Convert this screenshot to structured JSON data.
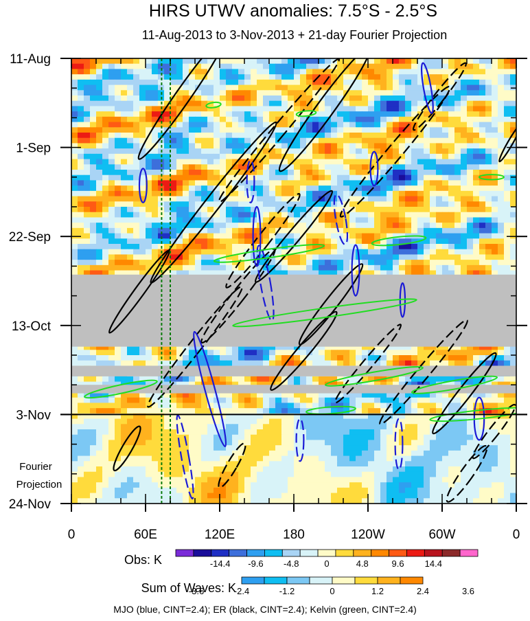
{
  "chart_data": {
    "type": "heatmap",
    "title": "HIRS UTWV anomalies: 7.5°S - 2.5°S",
    "subtitle": "11-Aug-2013 to 3-Nov-2013 + 21-day Fourier Projection",
    "x_tick_labels": [
      "0",
      "60E",
      "120E",
      "180",
      "120W",
      "60W",
      "0"
    ],
    "x_tick_lons": [
      0,
      60,
      120,
      180,
      240,
      300,
      360
    ],
    "xlim": [
      0,
      360
    ],
    "y_tick_labels": [
      "11-Aug",
      "1-Sep",
      "22-Sep",
      "13-Oct",
      "3-Nov",
      "24-Nov"
    ],
    "y_tick_days": [
      0,
      21,
      42,
      63,
      84,
      105
    ],
    "ylim_days": [
      0,
      105
    ],
    "projection_start_day": 84,
    "projection_label_line1": "Fourier",
    "projection_label_line2": "Projection",
    "reference_lons_dotted": [
      73,
      80
    ],
    "missing_data_bands_days": [
      [
        51,
        68
      ],
      [
        72.5,
        75
      ],
      [
        77,
        79
      ]
    ],
    "obs_colorbar": {
      "label": "Obs: K",
      "tick_labels": [
        "-14.4",
        "-9.6",
        "-4.8",
        "0",
        "4.8",
        "9.6",
        "14.4"
      ],
      "colors": [
        "#7a2bd8",
        "#1a0e9a",
        "#1f2fc4",
        "#3d6fdb",
        "#2e9ff0",
        "#0fbef2",
        "#a9d4f5",
        "#d8f3f8",
        "#fffbc7",
        "#ffdb3c",
        "#ffb21e",
        "#ff8800",
        "#ff5a14",
        "#ec1b14",
        "#b8141e",
        "#8c2a2a",
        "#ff66cc"
      ]
    },
    "waves_colorbar": {
      "label": "Sum of Waves: K",
      "tick_labels": [
        "-3.6",
        "-2.4",
        "-1.2",
        "0",
        "1.2",
        "2.4",
        "3.6"
      ],
      "colors": [
        "#2e9ff0",
        "#0fbef2",
        "#7cc8f4",
        "#d8f3f8",
        "#fffbc7",
        "#ffdb3c",
        "#ffb21e",
        "#ff8800"
      ]
    },
    "contour_series": [
      {
        "name": "MJO",
        "color": "blue",
        "hex": "#1b1bd6",
        "cint": 2.4
      },
      {
        "name": "ER",
        "color": "black",
        "hex": "#000000",
        "cint": 2.4
      },
      {
        "name": "Kelvin",
        "color": "green",
        "hex": "#22dd22",
        "cint": 2.4
      }
    ],
    "footer": "MJO (blue, CINT=2.4); ER (black, CINT=2.4); Kelvin (green, CINT=2.4)"
  }
}
